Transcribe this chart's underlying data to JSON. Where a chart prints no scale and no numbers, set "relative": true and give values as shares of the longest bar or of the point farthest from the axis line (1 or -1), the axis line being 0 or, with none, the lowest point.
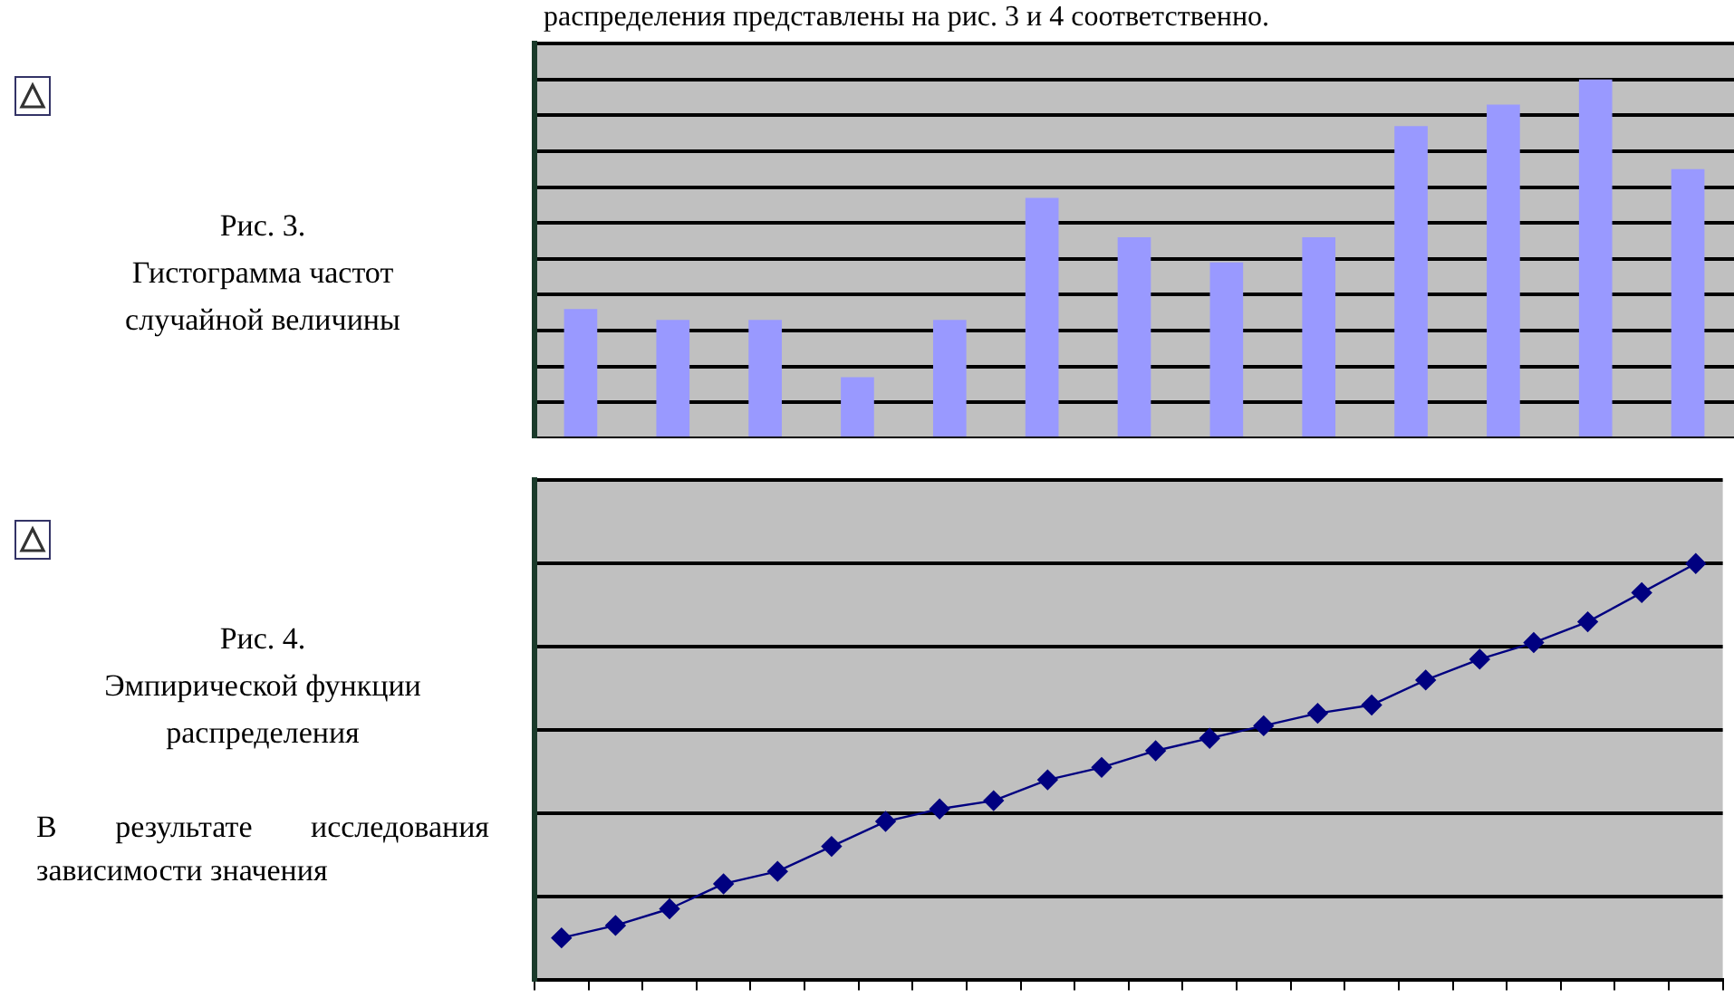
{
  "chart_data": [
    {
      "type": "bar",
      "relative": true,
      "grid": "y",
      "annotations": [
        "распределения представлены на рис. 3 и 4 соответственно.",
        "Рис. 3.",
        "Гистограмма частот случайной величины"
      ],
      "categories": [
        null,
        null,
        null,
        null,
        null,
        null,
        null,
        null,
        null,
        null,
        null,
        null,
        null
      ],
      "values": [
        0.36,
        0.33,
        0.33,
        0.17,
        0.33,
        0.67,
        0.56,
        0.49,
        0.56,
        0.87,
        0.93,
        1,
        0.75
      ],
      "color": "#9999ff"
    },
    {
      "type": "line",
      "relative": true,
      "grid": "y",
      "marker": "diamond",
      "line_style": "solid",
      "annotations": [
        "Рис. 4.",
        "Эмпирической функции распределения",
        "В результате исследования зависимости значения"
      ],
      "categories": [
        null,
        null,
        null,
        null,
        null,
        null,
        null,
        null,
        null,
        null,
        null,
        null,
        null,
        null,
        null,
        null,
        null,
        null,
        null,
        null,
        null,
        null
      ],
      "values": [
        0.1,
        0.13,
        0.17,
        0.23,
        0.26,
        0.32,
        0.38,
        0.41,
        0.43,
        0.48,
        0.51,
        0.55,
        0.58,
        0.61,
        0.64,
        0.66,
        0.72,
        0.77,
        0.81,
        0.86,
        0.93,
        1
      ],
      "color": "#000080"
    }
  ]
}
